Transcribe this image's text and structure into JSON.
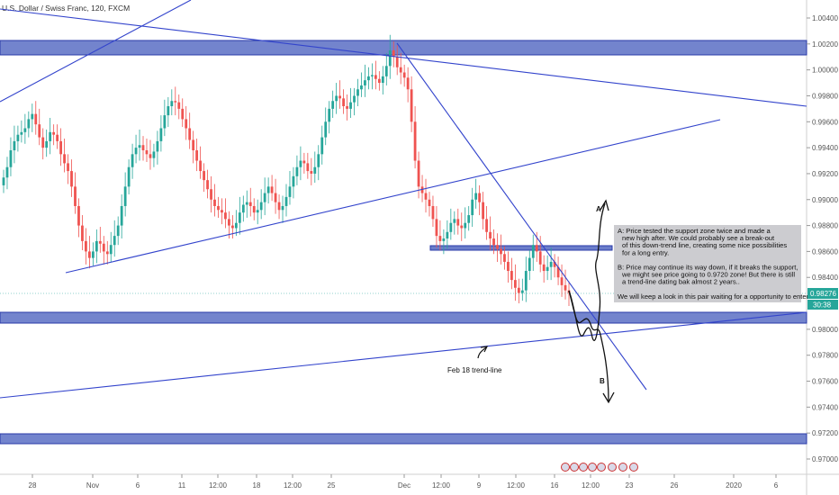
{
  "chart_data": {
    "type": "candlestick",
    "title": "U.S. Dollar / Swiss Franc, 120, FXCM",
    "y_ticks": [
      "1.00400",
      "1.00200",
      "1.00000",
      "0.99800",
      "0.99600",
      "0.99400",
      "0.99200",
      "0.99000",
      "0.98800",
      "0.98600",
      "0.98400",
      "0.98000",
      "0.97800",
      "0.97600",
      "0.97400",
      "0.97200",
      "0.97000"
    ],
    "x_ticks": [
      "28",
      "Nov",
      "6",
      "11",
      "12:00",
      "18",
      "12:00",
      "25",
      "Dec",
      "12:00",
      "9",
      "12:00",
      "16",
      "12:00",
      "23",
      "26",
      "2020",
      "6"
    ],
    "ylim": [
      0.969,
      1.005
    ],
    "price_tag": "0.98276",
    "timer_tag": "30:38",
    "price_tag_color": "#26a69a",
    "bull_color": "#26a69a",
    "bear_color": "#ef5350",
    "series": [
      {
        "values": [
          0.9917,
          0.9925,
          0.9938,
          0.9945,
          0.995,
          0.9952,
          0.9955,
          0.9962,
          0.9966,
          0.9958,
          0.9948,
          0.994,
          0.9945,
          0.9952,
          0.995,
          0.9945,
          0.9935,
          0.9928,
          0.9922,
          0.991,
          0.9895,
          0.988,
          0.9868,
          0.986,
          0.9855,
          0.986,
          0.9868,
          0.9866,
          0.986,
          0.9858,
          0.9865,
          0.9872,
          0.988,
          0.9895,
          0.991,
          0.9925,
          0.9935,
          0.994,
          0.9942,
          0.9938,
          0.9935,
          0.9932,
          0.9937,
          0.9945,
          0.9955,
          0.9965,
          0.9972,
          0.9976,
          0.9975,
          0.997,
          0.9962,
          0.9955,
          0.9946,
          0.9938,
          0.993,
          0.9922,
          0.9915,
          0.9908,
          0.99,
          0.9895,
          0.9892,
          0.989,
          0.9885,
          0.988,
          0.9878,
          0.9882,
          0.989,
          0.9896,
          0.9898,
          0.9895,
          0.989,
          0.9892,
          0.9898,
          0.9905,
          0.991,
          0.9905,
          0.9898,
          0.9892,
          0.9895,
          0.9902,
          0.991,
          0.9918,
          0.9925,
          0.993,
          0.9928,
          0.9922,
          0.992,
          0.9925,
          0.9935,
          0.9948,
          0.996,
          0.997,
          0.9976,
          0.998,
          0.9978,
          0.9972,
          0.997,
          0.9975,
          0.998,
          0.9985,
          0.9988,
          0.9992,
          0.9995,
          0.9996,
          0.9993,
          0.999,
          0.9995,
          1.0003,
          1.0015,
          1.001,
          1.0002,
          0.9998,
          0.9994,
          0.9985,
          0.996,
          0.993,
          0.991,
          0.9905,
          0.99,
          0.9895,
          0.9885,
          0.9872,
          0.9868,
          0.987,
          0.9875,
          0.9882,
          0.9885,
          0.988,
          0.9878,
          0.9882,
          0.9888,
          0.99,
          0.9905,
          0.9898,
          0.9885,
          0.9875,
          0.987,
          0.9865,
          0.9862,
          0.9858,
          0.9852,
          0.9845,
          0.9838,
          0.9832,
          0.9828,
          0.983,
          0.9845,
          0.9855,
          0.9865,
          0.986,
          0.985,
          0.9845,
          0.9848,
          0.9852,
          0.9848,
          0.984,
          0.9834,
          0.983,
          0.9828
        ]
      }
    ]
  },
  "annotations": {
    "note_lines": [
      "A: Price tested the support zone twice and made a",
      "new high after. We could probably see a break-out",
      "of this down-trend line, creating some nice possibilities",
      "for a long entry.",
      "",
      "B: Price may continue its way down, if it breaks the support,",
      "we might see price going to 0.9720 zone! But there is still",
      "a trend-line dating bak almost 2 years..",
      "",
      "We will keep a look in this pair waiting for a opportunity to enter"
    ],
    "label_a": "A",
    "label_b": "B",
    "trendline_label": "Feb 18 trend-line",
    "line_color": "#3344cc",
    "zone_color": "#5b6fc4"
  }
}
